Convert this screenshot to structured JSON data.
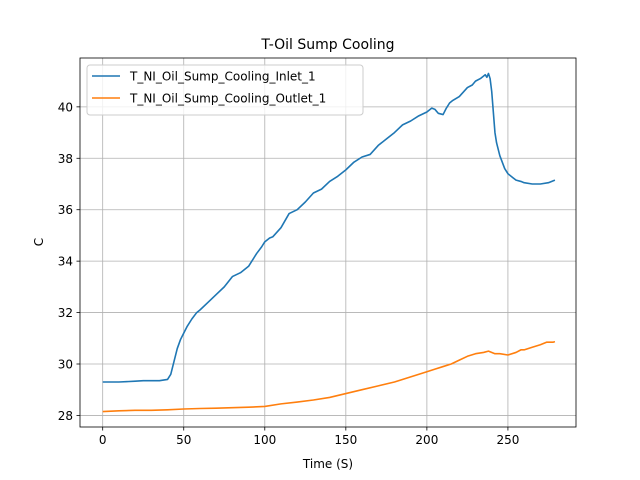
{
  "chart_data": {
    "type": "line",
    "title": "T-Oil Sump Cooling",
    "xlabel": "Time (S)",
    "ylabel": "C",
    "xlim": [
      -14,
      292
    ],
    "ylim": [
      27.55,
      41.9
    ],
    "xticks": [
      0,
      50,
      100,
      150,
      200,
      250
    ],
    "yticks": [
      28,
      30,
      32,
      34,
      36,
      38,
      40
    ],
    "grid": true,
    "legend": "top-left",
    "series": [
      {
        "name": "T_NI_Oil_Sump_Cooling_Inlet_1",
        "color": "#1f77b4",
        "x": [
          0,
          10,
          20,
          25,
          30,
          35,
          40,
          42,
          44,
          46,
          48,
          50,
          52,
          55,
          58,
          60,
          65,
          70,
          75,
          80,
          85,
          90,
          95,
          98,
          100,
          103,
          105,
          110,
          115,
          120,
          125,
          130,
          135,
          140,
          145,
          150,
          155,
          160,
          165,
          170,
          175,
          180,
          185,
          190,
          195,
          200,
          203,
          205,
          207,
          210,
          212,
          214,
          216,
          220,
          225,
          228,
          230,
          233,
          236,
          237,
          238,
          239,
          240,
          241,
          242,
          243,
          245,
          248,
          250,
          253,
          255,
          258,
          260,
          265,
          270,
          275,
          279
        ],
        "y": [
          29.3,
          29.3,
          29.33,
          29.35,
          29.35,
          29.35,
          29.4,
          29.6,
          30.1,
          30.6,
          30.95,
          31.2,
          31.45,
          31.75,
          32.0,
          32.1,
          32.4,
          32.7,
          33.0,
          33.4,
          33.55,
          33.8,
          34.3,
          34.55,
          34.75,
          34.9,
          34.95,
          35.3,
          35.85,
          36.0,
          36.3,
          36.65,
          36.8,
          37.1,
          37.3,
          37.55,
          37.85,
          38.05,
          38.15,
          38.5,
          38.75,
          39.0,
          39.3,
          39.45,
          39.65,
          39.8,
          39.95,
          39.9,
          39.75,
          39.7,
          39.95,
          40.15,
          40.25,
          40.4,
          40.75,
          40.85,
          41.0,
          41.1,
          41.25,
          41.15,
          41.3,
          41.1,
          40.6,
          39.8,
          39.0,
          38.6,
          38.1,
          37.6,
          37.4,
          37.25,
          37.15,
          37.1,
          37.05,
          37.0,
          37.0,
          37.05,
          37.15
        ]
      },
      {
        "name": "T_NI_Oil_Sump_Cooling_Outlet_1",
        "color": "#ff7f0e",
        "x": [
          0,
          10,
          20,
          30,
          40,
          50,
          60,
          70,
          80,
          90,
          100,
          110,
          120,
          130,
          140,
          150,
          160,
          170,
          180,
          190,
          200,
          205,
          210,
          215,
          220,
          225,
          230,
          235,
          238,
          242,
          245,
          250,
          255,
          258,
          260,
          265,
          270,
          274,
          278,
          279
        ],
        "y": [
          28.15,
          28.18,
          28.2,
          28.2,
          28.22,
          28.25,
          28.27,
          28.28,
          28.3,
          28.32,
          28.35,
          28.45,
          28.52,
          28.6,
          28.7,
          28.85,
          29.0,
          29.15,
          29.3,
          29.5,
          29.7,
          29.8,
          29.9,
          30.0,
          30.15,
          30.3,
          30.4,
          30.45,
          30.5,
          30.4,
          30.4,
          30.35,
          30.45,
          30.55,
          30.55,
          30.65,
          30.75,
          30.85,
          30.85,
          30.87
        ]
      }
    ]
  }
}
